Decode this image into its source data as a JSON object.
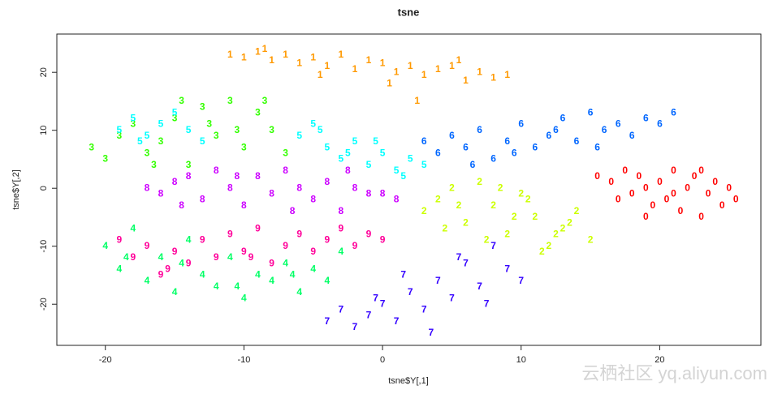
{
  "chart_data": {
    "type": "scatter",
    "title": "tsne",
    "x_label": "tsne$Y[,1]",
    "y_label": "tsne$Y[,2]",
    "xlim": [
      -23.5,
      27.3
    ],
    "ylim": [
      -27.1,
      26.6
    ],
    "xticks": [
      -20,
      -10,
      0,
      10,
      20
    ],
    "yticks": [
      -20,
      -10,
      0,
      10,
      20
    ],
    "grid": false,
    "watermark": "云栖社区 yq.aliyun.com",
    "series": [
      {
        "name": "0",
        "color": "#FF0000",
        "x": [
          15.5,
          16.5,
          17.5,
          18,
          18.5,
          19,
          19.5,
          20,
          20.5,
          21,
          21.5,
          22,
          22.5,
          23,
          23.5,
          24,
          24.5,
          25,
          25.5,
          17,
          19,
          21,
          23
        ],
        "values": [
          2,
          1,
          3,
          -1,
          2,
          0,
          -3,
          1,
          -2,
          3,
          -4,
          0,
          2,
          -5,
          -1,
          1,
          -3,
          0,
          -2,
          -2,
          -5,
          -1,
          3
        ]
      },
      {
        "name": "1",
        "color": "#FF9900",
        "x": [
          -11,
          -10,
          -9,
          -8,
          -7,
          -6,
          -5,
          -4,
          -3,
          -2,
          -1,
          0,
          1,
          2,
          3,
          4,
          5,
          6,
          7,
          8,
          9,
          -8.5,
          -4.5,
          0.5,
          5.5,
          2.5
        ],
        "values": [
          23,
          22.5,
          23.5,
          22,
          23,
          21.5,
          22.5,
          21,
          23,
          20.5,
          22,
          21.5,
          20,
          21,
          19.5,
          20.5,
          21,
          18.5,
          20,
          19,
          19.5,
          24,
          19.5,
          18,
          22,
          15
        ]
      },
      {
        "name": "2",
        "color": "#CCFF00",
        "x": [
          3,
          4,
          5,
          6,
          7,
          8,
          9,
          10,
          11,
          12,
          13,
          14,
          15,
          5.5,
          7.5,
          9.5,
          11.5,
          13.5,
          4.5,
          8.5,
          10.5,
          12.5
        ],
        "values": [
          -4,
          -2,
          0,
          -6,
          1,
          -3,
          -8,
          -1,
          -5,
          -10,
          -7,
          -4,
          -9,
          -3,
          -9,
          -5,
          -11,
          -6,
          -7,
          0,
          -2,
          -8
        ]
      },
      {
        "name": "3",
        "color": "#33FF00",
        "x": [
          -21,
          -20,
          -19,
          -18,
          -17,
          -16,
          -15,
          -14,
          -13,
          -12,
          -11,
          -10,
          -9,
          -8,
          -7,
          -14.5,
          -12.5,
          -10.5,
          -8.5,
          -16.5
        ],
        "values": [
          7,
          5,
          9,
          11,
          6,
          8,
          12,
          4,
          14,
          9,
          15,
          7,
          13,
          10,
          6,
          15,
          11,
          10,
          15,
          4
        ]
      },
      {
        "name": "4",
        "color": "#00FF66",
        "x": [
          -20,
          -19,
          -18,
          -17,
          -16,
          -15,
          -14,
          -13,
          -12,
          -11,
          -10,
          -9,
          -8,
          -7,
          -6,
          -5,
          -4,
          -3,
          -18.5,
          -14.5,
          -10.5,
          -6.5
        ],
        "values": [
          -10,
          -14,
          -7,
          -16,
          -12,
          -18,
          -9,
          -15,
          -17,
          -12,
          -19,
          -15,
          -16,
          -13,
          -18,
          -14,
          -16,
          -11,
          -12,
          -13,
          -17,
          -15
        ]
      },
      {
        "name": "5",
        "color": "#00FFFF",
        "x": [
          -19,
          -18,
          -17,
          -16,
          -15,
          -14,
          -13,
          -6,
          -5,
          -4,
          -3,
          -2,
          -1,
          0,
          1,
          2,
          3,
          -4.5,
          -2.5,
          -0.5,
          1.5,
          -17.5
        ],
        "values": [
          10,
          12,
          9,
          11,
          13,
          10,
          8,
          9,
          11,
          7,
          5,
          8,
          4,
          6,
          3,
          5,
          4,
          10,
          6,
          8,
          2,
          8
        ]
      },
      {
        "name": "6",
        "color": "#0066FF",
        "x": [
          3,
          4,
          5,
          6,
          7,
          8,
          9,
          10,
          11,
          12,
          13,
          14,
          15,
          16,
          17,
          18,
          19,
          20,
          21,
          6.5,
          9.5,
          12.5,
          15.5
        ],
        "values": [
          8,
          6,
          9,
          7,
          10,
          5,
          8,
          11,
          7,
          9,
          12,
          8,
          13,
          10,
          11,
          9,
          12,
          11,
          13,
          4,
          6,
          10,
          7
        ]
      },
      {
        "name": "7",
        "color": "#3300FF",
        "x": [
          -4,
          -3,
          -2,
          -1,
          0,
          1,
          2,
          3,
          4,
          5,
          6,
          7,
          8,
          9,
          10,
          3.5,
          5.5,
          7.5,
          1.5,
          -0.5
        ],
        "values": [
          -23,
          -21,
          -24,
          -22,
          -20,
          -23,
          -18,
          -21,
          -16,
          -19,
          -13,
          -17,
          -10,
          -14,
          -16,
          -25,
          -12,
          -20,
          -15,
          -19
        ]
      },
      {
        "name": "8",
        "color": "#CC00FF",
        "x": [
          -17,
          -16,
          -15,
          -14,
          -13,
          -12,
          -11,
          -10,
          -9,
          -8,
          -7,
          -6,
          -5,
          -4,
          -3,
          -2,
          -1,
          0,
          1,
          -14.5,
          -10.5,
          -6.5,
          -2.5
        ],
        "values": [
          0,
          -1,
          1,
          2,
          -2,
          3,
          0,
          -3,
          2,
          -1,
          3,
          0,
          -2,
          1,
          -4,
          0,
          -1,
          -1,
          -2,
          -3,
          2,
          -4,
          3
        ]
      },
      {
        "name": "9",
        "color": "#FF0099",
        "x": [
          -19,
          -18,
          -17,
          -16,
          -15,
          -14,
          -13,
          -12,
          -11,
          -10,
          -9,
          -8,
          -7,
          -6,
          -5,
          -4,
          -3,
          -2,
          -1,
          0,
          -15.5,
          -9.5
        ],
        "values": [
          -9,
          -12,
          -10,
          -15,
          -11,
          -13,
          -9,
          -12,
          -8,
          -11,
          -7,
          -13,
          -10,
          -8,
          -11,
          -9,
          -7,
          -10,
          -8,
          -9,
          -14,
          -12
        ]
      }
    ]
  }
}
